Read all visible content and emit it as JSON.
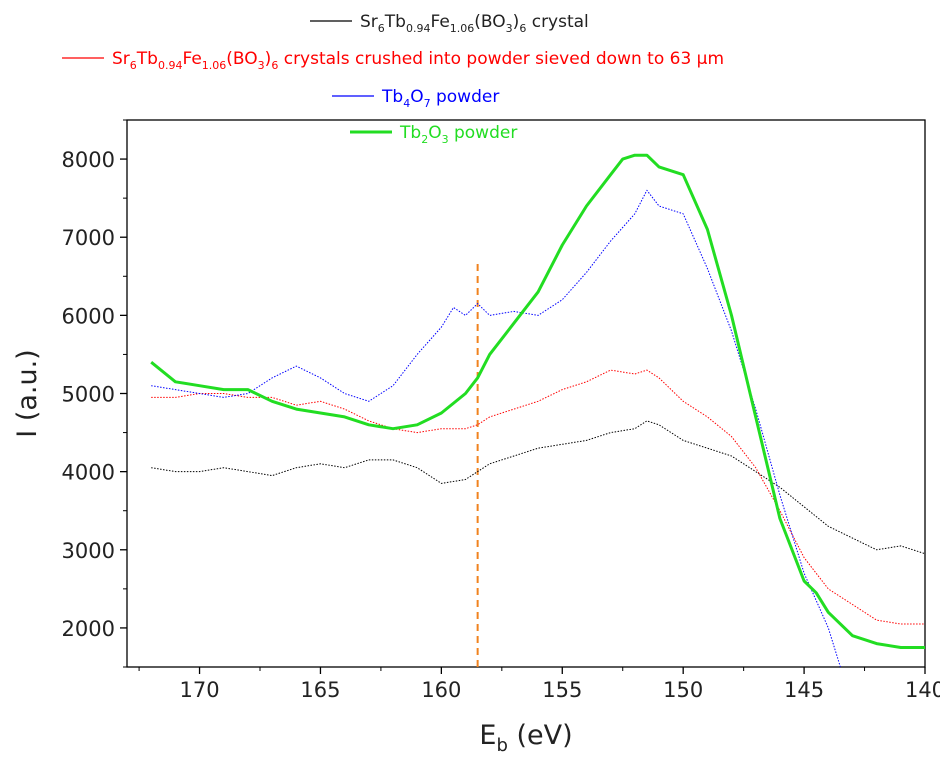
{
  "chart_data": {
    "type": "line",
    "xlabel": "E",
    "xlabel_sub": "b",
    "xlabel_unit": " (eV)",
    "ylabel": "I (a.u.)",
    "xlim": [
      173,
      140
    ],
    "ylim": [
      1500,
      8500
    ],
    "x_ticks": [
      170,
      165,
      160,
      155,
      150,
      145,
      140
    ],
    "y_ticks": [
      2000,
      3000,
      4000,
      5000,
      6000,
      7000,
      8000
    ],
    "grid": false,
    "legend_position": "top",
    "marker_line": {
      "x": 158.5,
      "ymin": 1500,
      "ymax": 6700,
      "color": "#f0821e",
      "style": "dashed"
    },
    "series": [
      {
        "name_parts": [
          [
            "Sr",
            ""
          ],
          [
            "6",
            "sub"
          ],
          [
            "Tb",
            ""
          ],
          [
            "0.94",
            "sub"
          ],
          [
            "Fe",
            ""
          ],
          [
            "1.06",
            "sub"
          ],
          [
            "(BO",
            ""
          ],
          [
            "3",
            "sub"
          ],
          [
            ")",
            ""
          ],
          [
            "6",
            "sub"
          ],
          [
            " crystal",
            ""
          ]
        ],
        "color": "#000000",
        "style": "dotted",
        "width": 1,
        "x": [
          172,
          171,
          170,
          169,
          168,
          167,
          166,
          165,
          164,
          163,
          162,
          161,
          160,
          159,
          158.5,
          158,
          157,
          156,
          155,
          154,
          153,
          152,
          151.5,
          151,
          150,
          149,
          148,
          147,
          146,
          145,
          144,
          143,
          142,
          141,
          140
        ],
        "values": [
          4050,
          4000,
          4000,
          4050,
          4000,
          3950,
          4050,
          4100,
          4050,
          4150,
          4150,
          4050,
          3850,
          3900,
          4000,
          4100,
          4200,
          4300,
          4350,
          4400,
          4500,
          4550,
          4650,
          4600,
          4400,
          4300,
          4200,
          4000,
          3800,
          3550,
          3300,
          3150,
          3000,
          3050,
          2950
        ]
      },
      {
        "name_parts": [
          [
            "Sr",
            ""
          ],
          [
            "6",
            "sub"
          ],
          [
            "Tb",
            ""
          ],
          [
            "0.94",
            "sub"
          ],
          [
            "Fe",
            ""
          ],
          [
            "1.06",
            "sub"
          ],
          [
            "(BO",
            ""
          ],
          [
            "3",
            "sub"
          ],
          [
            ")",
            ""
          ],
          [
            "6",
            "sub"
          ],
          [
            " crystals crushed into powder sieved down to 63 μm",
            ""
          ]
        ],
        "color": "#ff0000",
        "style": "dotted",
        "width": 1,
        "x": [
          172,
          171,
          170,
          169,
          168,
          167,
          166,
          165,
          164,
          163,
          162,
          161,
          160,
          159,
          158.5,
          158,
          157,
          156,
          155,
          154,
          153,
          152,
          151.5,
          151,
          150,
          149,
          148,
          147,
          146,
          145,
          144,
          143,
          142,
          141,
          140
        ],
        "values": [
          4950,
          4950,
          5000,
          5000,
          4950,
          4950,
          4850,
          4900,
          4800,
          4650,
          4550,
          4500,
          4550,
          4550,
          4600,
          4700,
          4800,
          4900,
          5050,
          5150,
          5300,
          5250,
          5300,
          5200,
          4900,
          4700,
          4450,
          4050,
          3500,
          2900,
          2500,
          2300,
          2100,
          2050,
          2050
        ]
      },
      {
        "name_parts": [
          [
            "Tb",
            ""
          ],
          [
            "4",
            "sub"
          ],
          [
            "O",
            ""
          ],
          [
            "7",
            "sub"
          ],
          [
            " powder",
            ""
          ]
        ],
        "color": "#0000ff",
        "style": "dotted",
        "width": 1,
        "x": [
          172,
          171,
          170,
          169,
          168,
          167,
          166,
          165,
          164,
          163,
          162,
          161,
          160,
          159.5,
          159,
          158.5,
          158,
          157,
          156,
          155,
          154,
          153,
          152,
          151.5,
          151,
          150,
          149,
          148,
          147,
          146,
          145,
          144,
          143.5
        ],
        "values": [
          5100,
          5050,
          5000,
          4950,
          5000,
          5200,
          5350,
          5200,
          5000,
          4900,
          5100,
          5500,
          5850,
          6100,
          6000,
          6150,
          6000,
          6050,
          6000,
          6200,
          6550,
          6950,
          7300,
          7600,
          7400,
          7300,
          6600,
          5800,
          4800,
          3700,
          2700,
          2000,
          1500
        ]
      },
      {
        "name_parts": [
          [
            "Tb",
            ""
          ],
          [
            "2",
            "sub"
          ],
          [
            "O",
            ""
          ],
          [
            "3",
            "sub"
          ],
          [
            " powder",
            ""
          ]
        ],
        "color": "#22dd22",
        "style": "solid",
        "width": 3,
        "x": [
          172,
          171,
          170,
          169,
          168,
          167,
          166,
          165,
          164,
          163,
          162,
          161,
          160,
          159,
          158.5,
          158,
          157,
          156,
          155,
          154,
          153,
          152.5,
          152,
          151.5,
          151,
          150,
          149,
          148,
          147,
          146,
          145,
          144.5,
          144,
          143,
          142,
          141,
          140
        ],
        "values": [
          5400,
          5150,
          5100,
          5050,
          5050,
          4900,
          4800,
          4750,
          4700,
          4600,
          4550,
          4600,
          4750,
          5000,
          5200,
          5500,
          5900,
          6300,
          6900,
          7400,
          7800,
          8000,
          8050,
          8050,
          7900,
          7800,
          7100,
          6000,
          4700,
          3400,
          2600,
          2450,
          2200,
          1900,
          1800,
          1750,
          1750
        ]
      }
    ]
  }
}
